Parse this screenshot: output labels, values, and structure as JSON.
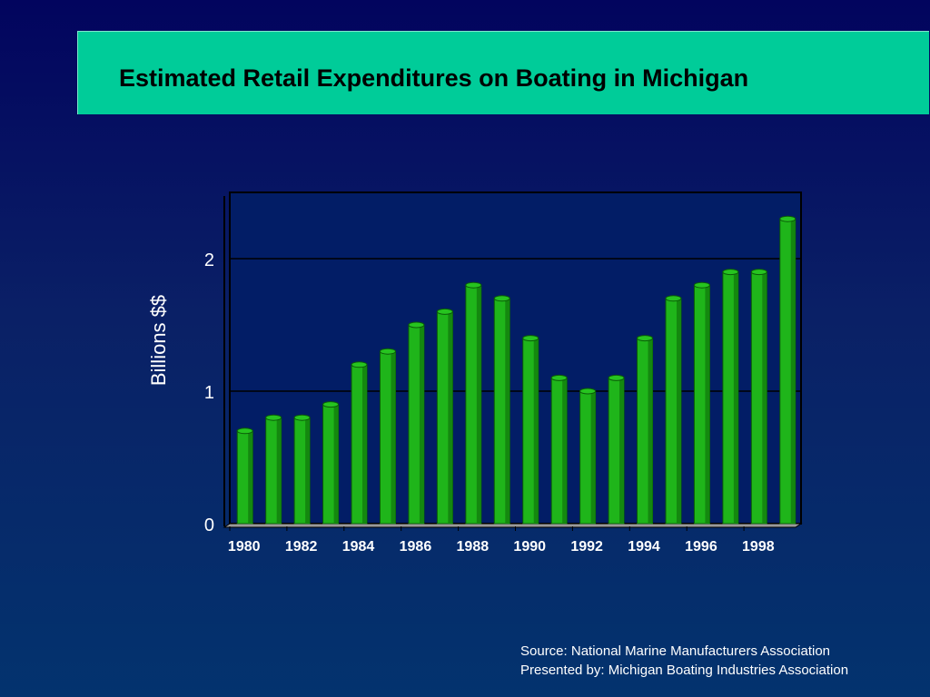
{
  "title": "Estimated Retail Expenditures on Boating in Michigan",
  "source_lines": [
    "Source: National Marine Manufacturers Association",
    "Presented by: Michigan Boating Industries Association"
  ],
  "colors": {
    "title_bg": "#00cc99",
    "bar": "#1fb51a",
    "background": "#0a2066"
  },
  "chart_data": {
    "type": "bar",
    "style": "3d-cylinder",
    "title": "",
    "xlabel": "",
    "ylabel": "Billions $$",
    "ylim": [
      0,
      2.5
    ],
    "yticks": [
      0,
      1,
      2
    ],
    "grid": true,
    "categories": [
      "1980",
      "1981",
      "1982",
      "1983",
      "1984",
      "1985",
      "1986",
      "1987",
      "1988",
      "1989",
      "1990",
      "1991",
      "1992",
      "1993",
      "1994",
      "1995",
      "1996",
      "1997",
      "1998",
      "1999"
    ],
    "xtick_labels": [
      "1980",
      "1982",
      "1984",
      "1986",
      "1988",
      "1990",
      "1992",
      "1994",
      "1996",
      "1998"
    ],
    "values": [
      0.7,
      0.8,
      0.8,
      0.9,
      1.2,
      1.3,
      1.5,
      1.6,
      1.8,
      1.7,
      1.4,
      1.1,
      1.0,
      1.1,
      1.4,
      1.7,
      1.8,
      1.9,
      1.9,
      2.3
    ]
  }
}
